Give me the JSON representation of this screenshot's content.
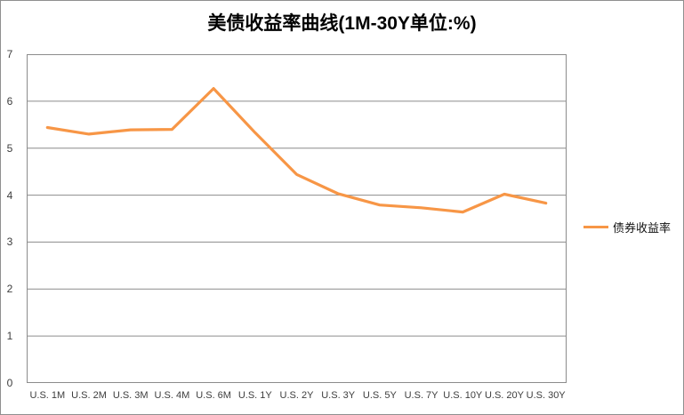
{
  "title": "美债收益率曲线(1M-30Y单位:%)",
  "legend": {
    "label": "债券收益率"
  },
  "colors": {
    "series": "#F79646",
    "gridline": "#8c8c8c",
    "plot_border": "#8c8c8c",
    "chart_border": "#8f8f8f",
    "axis_text": "#3d3d3d",
    "title_text": "#000000",
    "background": "#ffffff"
  },
  "chart_data": {
    "type": "line",
    "title": "美债收益率曲线(1M-30Y单位:%)",
    "categories": [
      "U.S. 1M",
      "U.S. 2M",
      "U.S. 3M",
      "U.S. 4M",
      "U.S. 6M",
      "U.S. 1Y",
      "U.S. 2Y",
      "U.S. 3Y",
      "U.S. 5Y",
      "U.S. 7Y",
      "U.S. 10Y",
      "U.S. 20Y",
      "U.S. 30Y"
    ],
    "series": [
      {
        "name": "债券收益率",
        "values": [
          5.44,
          5.3,
          5.39,
          5.4,
          6.27,
          5.33,
          4.44,
          4.03,
          3.79,
          3.73,
          3.64,
          4.02,
          3.83
        ]
      }
    ],
    "xlabel": "",
    "ylabel": "",
    "ylim": [
      0,
      7
    ],
    "y_ticks": [
      0,
      1,
      2,
      3,
      4,
      5,
      6,
      7
    ],
    "grid": true,
    "legend_position": "right"
  }
}
